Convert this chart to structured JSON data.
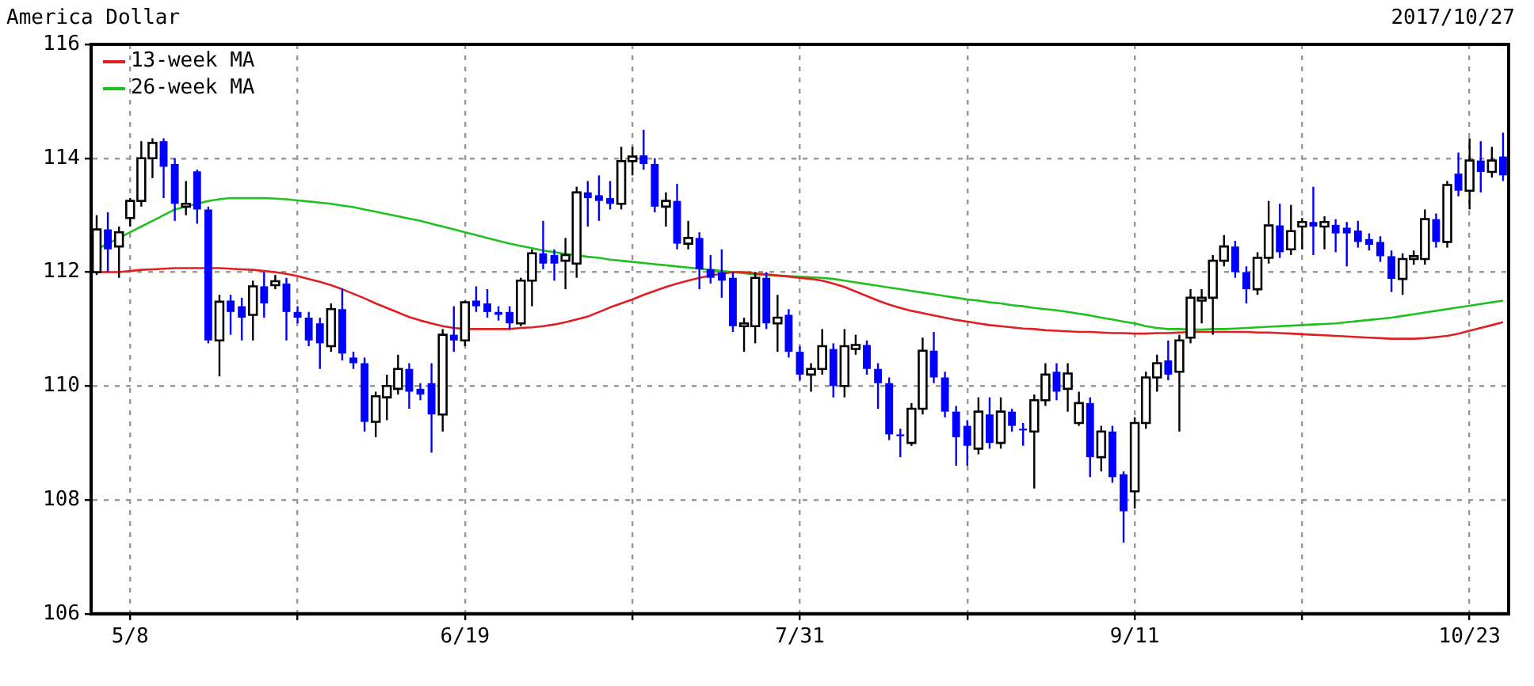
{
  "chart_data": {
    "type": "candlestick",
    "title": "America Dollar",
    "subtitle": "2017/10/27",
    "categories": [
      null,
      null,
      null,
      "5/8",
      null,
      null,
      null,
      null,
      null,
      null,
      null,
      null,
      null,
      null,
      null,
      null,
      null,
      null,
      null,
      null,
      null,
      null,
      null,
      null,
      null,
      null,
      null,
      null,
      null,
      null,
      null,
      null,
      null,
      "6/19",
      null,
      null,
      null,
      null,
      null,
      null,
      null,
      null,
      null,
      null,
      null,
      null,
      null,
      null,
      null,
      null,
      null,
      null,
      null,
      null,
      null,
      null,
      null,
      null,
      null,
      null,
      null,
      null,
      null,
      "7/31",
      null,
      null,
      null,
      null,
      null,
      null,
      null,
      null,
      null,
      null,
      null,
      null,
      null,
      null,
      null,
      null,
      null,
      null,
      null,
      null,
      null,
      null,
      null,
      null,
      null,
      null,
      null,
      null,
      null,
      "9/11",
      null,
      null,
      null,
      null,
      null,
      null,
      null,
      null,
      null,
      null,
      null,
      null,
      null,
      null,
      null,
      null,
      null,
      null,
      null,
      null,
      null,
      null,
      null,
      null,
      null,
      null,
      null,
      null,
      null,
      "10/23",
      null,
      null,
      null
    ],
    "ohlc": [
      [
        112.0,
        113.0,
        111.95,
        112.75
      ],
      [
        112.75,
        113.05,
        112.0,
        112.4
      ],
      [
        112.45,
        112.8,
        111.9,
        112.7
      ],
      [
        112.95,
        113.3,
        112.8,
        113.25
      ],
      [
        113.25,
        114.3,
        113.15,
        114.0
      ],
      [
        114.0,
        114.35,
        113.65,
        114.27
      ],
      [
        114.3,
        114.35,
        113.3,
        113.85
      ],
      [
        113.9,
        114.0,
        112.9,
        113.2
      ],
      [
        113.15,
        113.6,
        113.0,
        113.2
      ],
      [
        113.77,
        113.8,
        112.85,
        113.1
      ],
      [
        113.1,
        113.15,
        110.75,
        110.8
      ],
      [
        110.8,
        111.6,
        110.17,
        111.48
      ],
      [
        111.5,
        111.6,
        110.9,
        111.3
      ],
      [
        111.4,
        111.55,
        110.8,
        111.2
      ],
      [
        111.25,
        111.85,
        110.8,
        111.75
      ],
      [
        111.75,
        112.0,
        111.2,
        111.45
      ],
      [
        111.77,
        111.95,
        111.7,
        111.84
      ],
      [
        111.8,
        111.9,
        110.8,
        111.3
      ],
      [
        111.3,
        111.4,
        111.1,
        111.2
      ],
      [
        111.2,
        111.3,
        110.7,
        110.8
      ],
      [
        111.1,
        111.2,
        110.3,
        110.75
      ],
      [
        110.7,
        111.45,
        110.6,
        111.35
      ],
      [
        111.35,
        111.71,
        110.45,
        110.57
      ],
      [
        110.5,
        110.6,
        110.3,
        110.4
      ],
      [
        110.4,
        110.5,
        109.2,
        109.37
      ],
      [
        109.37,
        109.9,
        109.1,
        109.82
      ],
      [
        109.8,
        110.2,
        109.4,
        110.0
      ],
      [
        109.95,
        110.55,
        109.85,
        110.3
      ],
      [
        110.3,
        110.4,
        109.6,
        109.9
      ],
      [
        109.95,
        110.05,
        109.75,
        109.85
      ],
      [
        110.05,
        110.4,
        108.83,
        109.5
      ],
      [
        109.5,
        111.0,
        109.2,
        110.9
      ],
      [
        110.9,
        111.4,
        110.6,
        110.8
      ],
      [
        110.8,
        111.5,
        110.7,
        111.47
      ],
      [
        111.5,
        111.75,
        111.3,
        111.4
      ],
      [
        111.45,
        111.7,
        111.2,
        111.3
      ],
      [
        111.3,
        111.4,
        111.15,
        111.25
      ],
      [
        111.3,
        111.4,
        111.0,
        111.1
      ],
      [
        111.1,
        111.9,
        111.05,
        111.85
      ],
      [
        111.85,
        112.4,
        111.4,
        112.33
      ],
      [
        112.33,
        112.9,
        112.05,
        112.15
      ],
      [
        112.3,
        112.4,
        111.85,
        112.15
      ],
      [
        112.2,
        112.6,
        111.7,
        112.3
      ],
      [
        112.15,
        113.5,
        111.9,
        113.4
      ],
      [
        113.4,
        113.6,
        112.8,
        113.3
      ],
      [
        113.35,
        113.7,
        112.9,
        113.25
      ],
      [
        113.3,
        113.6,
        113.1,
        113.2
      ],
      [
        113.2,
        114.2,
        113.1,
        113.95
      ],
      [
        113.95,
        114.2,
        113.7,
        114.03
      ],
      [
        114.05,
        114.5,
        113.8,
        113.9
      ],
      [
        113.9,
        114.0,
        113.05,
        113.15
      ],
      [
        113.15,
        113.4,
        112.8,
        113.25
      ],
      [
        113.25,
        113.55,
        112.4,
        112.5
      ],
      [
        112.5,
        112.9,
        112.4,
        112.6
      ],
      [
        112.6,
        112.7,
        111.7,
        112.05
      ],
      [
        112.05,
        112.3,
        111.8,
        111.9
      ],
      [
        112.0,
        112.4,
        111.55,
        111.85
      ],
      [
        111.9,
        112.0,
        110.95,
        111.05
      ],
      [
        111.05,
        111.2,
        110.6,
        111.1
      ],
      [
        111.05,
        112.0,
        110.75,
        111.9
      ],
      [
        111.9,
        112.0,
        111.0,
        111.1
      ],
      [
        111.1,
        111.6,
        110.6,
        111.2
      ],
      [
        111.25,
        111.35,
        110.5,
        110.6
      ],
      [
        110.6,
        110.7,
        110.1,
        110.2
      ],
      [
        110.2,
        110.4,
        109.9,
        110.3
      ],
      [
        110.3,
        111.0,
        110.2,
        110.7
      ],
      [
        110.65,
        110.75,
        109.8,
        110.0
      ],
      [
        110.0,
        111.0,
        109.8,
        110.7
      ],
      [
        110.65,
        110.9,
        110.55,
        110.72
      ],
      [
        110.72,
        110.8,
        110.2,
        110.3
      ],
      [
        110.3,
        110.4,
        109.6,
        110.05
      ],
      [
        110.05,
        110.15,
        109.05,
        109.15
      ],
      [
        109.15,
        109.25,
        108.75,
        109.12
      ],
      [
        109.0,
        109.7,
        108.95,
        109.6
      ],
      [
        109.6,
        110.85,
        109.5,
        110.62
      ],
      [
        110.62,
        110.95,
        110.05,
        110.15
      ],
      [
        110.15,
        110.25,
        109.45,
        109.55
      ],
      [
        109.55,
        109.65,
        108.6,
        109.1
      ],
      [
        109.3,
        109.4,
        108.6,
        108.95
      ],
      [
        108.9,
        109.8,
        108.8,
        109.55
      ],
      [
        109.5,
        109.8,
        108.9,
        109.0
      ],
      [
        109.0,
        109.8,
        108.9,
        109.55
      ],
      [
        109.55,
        109.6,
        109.2,
        109.3
      ],
      [
        109.25,
        109.35,
        108.95,
        109.22
      ],
      [
        109.2,
        109.85,
        108.2,
        109.75
      ],
      [
        109.75,
        110.4,
        109.65,
        110.2
      ],
      [
        110.25,
        110.4,
        109.75,
        109.9
      ],
      [
        109.95,
        110.4,
        109.55,
        110.22
      ],
      [
        109.35,
        109.9,
        109.3,
        109.7
      ],
      [
        109.7,
        109.8,
        108.4,
        108.75
      ],
      [
        108.75,
        109.3,
        108.5,
        109.2
      ],
      [
        109.2,
        109.3,
        108.3,
        108.4
      ],
      [
        108.45,
        108.5,
        107.25,
        107.8
      ],
      [
        108.15,
        109.45,
        107.85,
        109.35
      ],
      [
        109.35,
        110.25,
        109.25,
        110.15
      ],
      [
        110.15,
        110.55,
        109.9,
        110.4
      ],
      [
        110.45,
        110.8,
        110.1,
        110.2
      ],
      [
        110.25,
        110.9,
        109.2,
        110.8
      ],
      [
        110.85,
        111.7,
        110.75,
        111.55
      ],
      [
        111.5,
        111.7,
        111.1,
        111.55
      ],
      [
        111.55,
        112.3,
        110.9,
        112.2
      ],
      [
        112.2,
        112.65,
        112.1,
        112.45
      ],
      [
        112.45,
        112.55,
        111.9,
        112.0
      ],
      [
        112.0,
        112.1,
        111.45,
        111.7
      ],
      [
        111.7,
        112.35,
        111.6,
        112.25
      ],
      [
        112.25,
        113.25,
        112.15,
        112.82
      ],
      [
        112.82,
        113.2,
        112.25,
        112.35
      ],
      [
        112.4,
        113.18,
        112.3,
        112.72
      ],
      [
        112.8,
        112.95,
        112.4,
        112.88
      ],
      [
        112.88,
        113.5,
        112.3,
        112.8
      ],
      [
        112.8,
        112.98,
        112.4,
        112.88
      ],
      [
        112.83,
        112.93,
        112.35,
        112.68
      ],
      [
        112.78,
        112.88,
        112.1,
        112.68
      ],
      [
        112.73,
        112.9,
        112.43,
        112.53
      ],
      [
        112.58,
        112.68,
        112.38,
        112.48
      ],
      [
        112.53,
        112.63,
        112.18,
        112.28
      ],
      [
        112.28,
        112.38,
        111.65,
        111.88
      ],
      [
        111.88,
        112.33,
        111.6,
        112.23
      ],
      [
        112.23,
        112.38,
        112.13,
        112.28
      ],
      [
        112.23,
        113.1,
        112.13,
        112.93
      ],
      [
        112.93,
        113.03,
        112.43,
        112.53
      ],
      [
        112.53,
        113.6,
        112.43,
        113.53
      ],
      [
        113.73,
        114.1,
        113.33,
        113.43
      ],
      [
        113.43,
        114.35,
        113.1,
        113.96
      ],
      [
        113.96,
        114.3,
        113.4,
        113.76
      ],
      [
        113.76,
        114.2,
        113.66,
        113.96
      ],
      [
        114.03,
        114.45,
        113.6,
        113.7
      ]
    ],
    "series": [
      {
        "name": "13-week MA",
        "type": "line",
        "color": "#e02020",
        "values": [
          112.0,
          112.0,
          112.0,
          112.02,
          112.04,
          112.05,
          112.06,
          112.07,
          112.07,
          112.07,
          112.07,
          112.07,
          112.06,
          112.05,
          112.04,
          112.02,
          112.0,
          111.97,
          111.93,
          111.88,
          111.83,
          111.77,
          111.7,
          111.62,
          111.54,
          111.45,
          111.37,
          111.29,
          111.21,
          111.15,
          111.1,
          111.05,
          111.02,
          111.0,
          111.0,
          111.0,
          111.0,
          111.0,
          111.02,
          111.03,
          111.05,
          111.08,
          111.12,
          111.17,
          111.22,
          111.3,
          111.38,
          111.45,
          111.52,
          111.6,
          111.67,
          111.74,
          111.8,
          111.85,
          111.9,
          111.94,
          111.97,
          112.0,
          112.0,
          111.98,
          111.96,
          111.94,
          111.92,
          111.9,
          111.88,
          111.85,
          111.8,
          111.74,
          111.66,
          111.58,
          111.5,
          111.43,
          111.37,
          111.32,
          111.28,
          111.24,
          111.2,
          111.16,
          111.13,
          111.1,
          111.07,
          111.05,
          111.03,
          111.01,
          111.0,
          110.98,
          110.97,
          110.96,
          110.95,
          110.95,
          110.94,
          110.93,
          110.93,
          110.92,
          110.92,
          110.93,
          110.93,
          110.94,
          110.95,
          110.95,
          110.95,
          110.95,
          110.95,
          110.95,
          110.94,
          110.94,
          110.93,
          110.92,
          110.91,
          110.9,
          110.89,
          110.88,
          110.87,
          110.86,
          110.85,
          110.84,
          110.83,
          110.83,
          110.83,
          110.84,
          110.86,
          110.88,
          110.92,
          110.97,
          111.02,
          111.07,
          111.12
        ]
      },
      {
        "name": "26-week MA",
        "type": "line",
        "color": "#20c020",
        "values": [
          112.4,
          112.5,
          112.6,
          112.7,
          112.8,
          112.9,
          113.0,
          113.1,
          113.15,
          113.2,
          113.25,
          113.28,
          113.3,
          113.3,
          113.3,
          113.3,
          113.29,
          113.28,
          113.26,
          113.24,
          113.22,
          113.2,
          113.17,
          113.14,
          113.1,
          113.06,
          113.02,
          112.98,
          112.94,
          112.9,
          112.85,
          112.8,
          112.75,
          112.7,
          112.65,
          112.6,
          112.55,
          112.5,
          112.46,
          112.42,
          112.38,
          112.35,
          112.32,
          112.3,
          112.27,
          112.25,
          112.22,
          112.2,
          112.18,
          112.16,
          112.14,
          112.12,
          112.1,
          112.08,
          112.06,
          112.04,
          112.02,
          112.0,
          111.98,
          111.96,
          111.95,
          111.94,
          111.93,
          111.92,
          111.91,
          111.9,
          111.88,
          111.85,
          111.82,
          111.79,
          111.76,
          111.73,
          111.7,
          111.67,
          111.64,
          111.61,
          111.58,
          111.55,
          111.52,
          111.5,
          111.47,
          111.45,
          111.42,
          111.4,
          111.37,
          111.35,
          111.33,
          111.3,
          111.27,
          111.24,
          111.2,
          111.17,
          111.13,
          111.1,
          111.05,
          111.02,
          111.0,
          111.0,
          110.99,
          110.99,
          111.0,
          111.0,
          111.01,
          111.02,
          111.03,
          111.04,
          111.05,
          111.06,
          111.07,
          111.08,
          111.09,
          111.1,
          111.12,
          111.14,
          111.16,
          111.18,
          111.2,
          111.23,
          111.26,
          111.29,
          111.32,
          111.35,
          111.38,
          111.41,
          111.44,
          111.47,
          111.5
        ]
      }
    ],
    "ylim": [
      106,
      116
    ],
    "yticks": [
      106,
      108,
      110,
      112,
      114,
      116
    ],
    "grid": true,
    "legend": "top left",
    "marker": "none",
    "line_style": "solid"
  }
}
